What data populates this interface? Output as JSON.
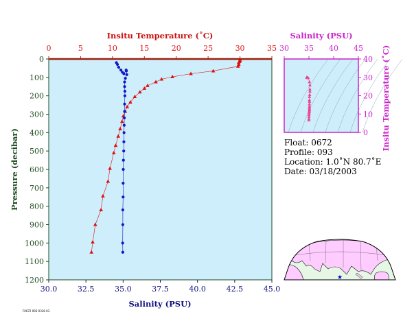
{
  "colors": {
    "plot_bg": "#cdeefa",
    "temperature": "#dd1111",
    "salinity": "#1515c8",
    "ts_frame": "#cc22cc",
    "ts_points": "#ee4499",
    "pressure_axis": "#1d4a1d",
    "salinity_axis": "#101080",
    "map_land": "#ffccff",
    "map_ocean": "#e6f7e6"
  },
  "labels": {
    "temp_axis_title": "Insitu Temperature (˚C)",
    "sal_axis_title": "Salinity (PSU)",
    "pressure_axis_title": "Pressure (decibar)",
    "ts_top_title": "Salinity (PSU)",
    "ts_right_title": "Insitu Temperature (˚C)",
    "footer_code": "F0672 093 0318 03"
  },
  "info": {
    "float": "Float:  0672",
    "profile": "Profile:  093",
    "location": "Location:  1.0˚N  80.7˚E",
    "date": "Date:  03/18/2003"
  },
  "chart_data": [
    {
      "type": "line",
      "xlabel": "Salinity (PSU)",
      "ylabel": "Pressure (decibar)",
      "x2label": "Insitu Temperature (˚C)",
      "y_inverted": true,
      "ylim": [
        0,
        1200
      ],
      "yticks": [
        0,
        100,
        200,
        300,
        400,
        500,
        600,
        700,
        800,
        900,
        1000,
        1100,
        1200
      ],
      "xlim": [
        30,
        45
      ],
      "xticks": [
        "30.0",
        "32.5",
        "35.0",
        "37.5",
        "40.0",
        "42.5",
        "45.0"
      ],
      "x2lim": [
        0,
        35
      ],
      "x2ticks": [
        "0",
        "5",
        "10",
        "15",
        "20",
        "25",
        "30",
        "35"
      ],
      "grid": false,
      "series": [
        {
          "name": "temperature",
          "axis": "top",
          "marker": "triangle",
          "points": [
            [
              30.0,
              5
            ],
            [
              30.0,
              10
            ],
            [
              29.9,
              15
            ],
            [
              29.8,
              20
            ],
            [
              29.8,
              30
            ],
            [
              29.7,
              40
            ],
            [
              25.8,
              65
            ],
            [
              22.3,
              80
            ],
            [
              19.4,
              97
            ],
            [
              17.7,
              110
            ],
            [
              16.8,
              125
            ],
            [
              15.5,
              145
            ],
            [
              15.0,
              160
            ],
            [
              14.3,
              180
            ],
            [
              13.5,
              205
            ],
            [
              12.8,
              235
            ],
            [
              12.3,
              260
            ],
            [
              12.0,
              285
            ],
            [
              11.7,
              310
            ],
            [
              11.5,
              340
            ],
            [
              11.2,
              380
            ],
            [
              10.9,
              420
            ],
            [
              10.5,
              470
            ],
            [
              10.2,
              510
            ],
            [
              9.6,
              595
            ],
            [
              9.3,
              665
            ],
            [
              8.5,
              745
            ],
            [
              8.2,
              820
            ],
            [
              7.3,
              900
            ],
            [
              6.9,
              995
            ],
            [
              6.7,
              1050
            ]
          ]
        },
        {
          "name": "salinity",
          "axis": "bottom",
          "marker": "circle",
          "points": [
            [
              34.55,
              20
            ],
            [
              34.62,
              30
            ],
            [
              34.7,
              45
            ],
            [
              34.85,
              60
            ],
            [
              34.95,
              72
            ],
            [
              35.05,
              80
            ],
            [
              35.2,
              60
            ],
            [
              35.22,
              65
            ],
            [
              35.25,
              85
            ],
            [
              35.15,
              105
            ],
            [
              35.1,
              125
            ],
            [
              35.1,
              150
            ],
            [
              35.12,
              175
            ],
            [
              35.12,
              200
            ],
            [
              35.1,
              245
            ],
            [
              35.1,
              285
            ],
            [
              35.08,
              320
            ],
            [
              35.07,
              360
            ],
            [
              35.06,
              400
            ],
            [
              35.05,
              450
            ],
            [
              35.04,
              500
            ],
            [
              35.02,
              550
            ],
            [
              35.01,
              600
            ],
            [
              35.0,
              675
            ],
            [
              35.0,
              750
            ],
            [
              34.98,
              820
            ],
            [
              34.98,
              900
            ],
            [
              34.97,
              1000
            ],
            [
              34.98,
              1050
            ]
          ]
        }
      ]
    },
    {
      "type": "scatter",
      "xlabel": "Salinity (PSU)",
      "ylabel": "Insitu Temperature (˚C)",
      "xlim": [
        30,
        45
      ],
      "xticks": [
        "30",
        "35",
        "40",
        "45"
      ],
      "ylim": [
        0,
        40
      ],
      "yticks": [
        "0",
        "10",
        "20",
        "30",
        "40"
      ],
      "density_isolines": true,
      "points": [
        [
          34.55,
          30.0
        ],
        [
          34.6,
          29.9
        ],
        [
          34.7,
          29.8
        ],
        [
          34.85,
          29.7
        ],
        [
          35.1,
          27.5
        ],
        [
          35.2,
          25.8
        ],
        [
          35.2,
          23.5
        ],
        [
          35.2,
          22.3
        ],
        [
          35.15,
          20.5
        ],
        [
          35.1,
          19.4
        ],
        [
          35.1,
          17.7
        ],
        [
          35.1,
          16.8
        ],
        [
          35.1,
          15.5
        ],
        [
          35.1,
          14.3
        ],
        [
          35.1,
          13.5
        ],
        [
          35.1,
          12.8
        ],
        [
          35.1,
          12.3
        ],
        [
          35.08,
          11.7
        ],
        [
          35.06,
          11.2
        ],
        [
          35.05,
          10.5
        ],
        [
          35.02,
          9.6
        ],
        [
          35.0,
          8.5
        ],
        [
          35.0,
          7.3
        ],
        [
          34.98,
          6.7
        ]
      ]
    }
  ]
}
